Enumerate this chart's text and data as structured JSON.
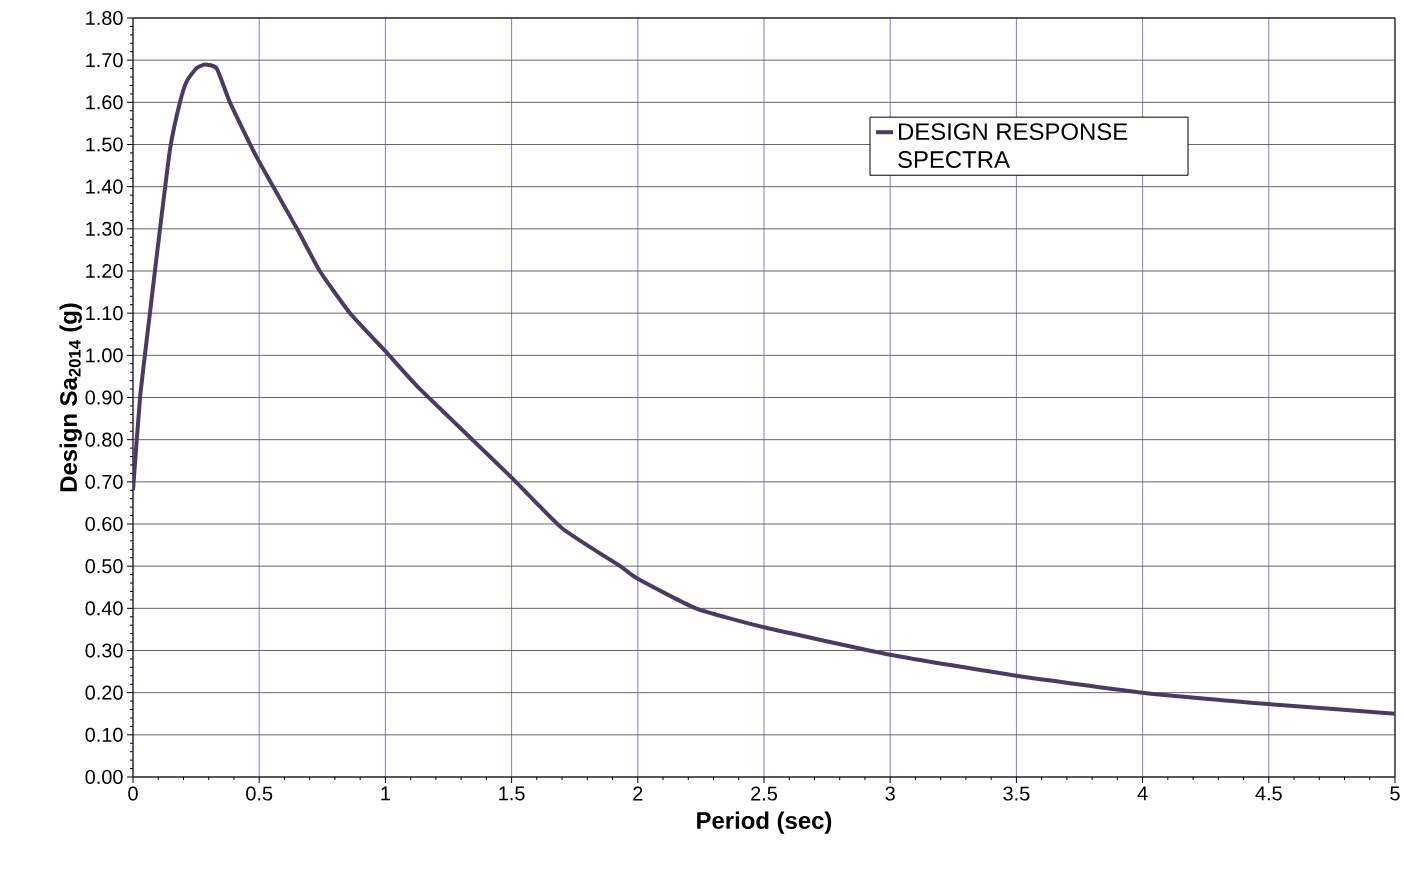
{
  "chart_data": {
    "type": "line",
    "xlabel": "Period (sec)",
    "ylabel": "Design Sa$_{2014}$ (g)",
    "x": [
      0,
      0.028,
      0.067,
      0.107,
      0.147,
      0.186,
      0.213,
      0.25,
      0.285,
      0.332,
      0.384,
      0.49,
      0.65,
      0.74,
      0.86,
      1.0,
      1.137,
      1.5,
      1.7,
      1.93,
      2.0,
      2.23,
      2.5,
      3.0,
      3.5,
      4.0,
      4.5,
      5.0
    ],
    "series": [
      {
        "name": "DESIGN RESPONSE SPECTRA",
        "color": "#4b3b63",
        "values": [
          0.68,
          0.9,
          1.1,
          1.3,
          1.49,
          1.6,
          1.65,
          1.68,
          1.69,
          1.68,
          1.6,
          1.47,
          1.3,
          1.2,
          1.1,
          1.01,
          0.92,
          0.71,
          0.59,
          0.5,
          0.47,
          0.4,
          0.355,
          0.29,
          0.24,
          0.2,
          0.173,
          0.15
        ]
      }
    ],
    "xlim": [
      0,
      5
    ],
    "ylim": [
      0,
      1.8
    ],
    "xticks": [
      0,
      0.5,
      1,
      1.5,
      2,
      2.5,
      3,
      3.5,
      4,
      4.5,
      5
    ],
    "yticks": [
      {
        "value": 0,
        "label": "0.00"
      },
      {
        "value": 0.1,
        "label": "0.10"
      },
      {
        "value": 0.2,
        "label": "0.20"
      },
      {
        "value": 0.3,
        "label": "0.30"
      },
      {
        "value": 0.4,
        "label": "0.40"
      },
      {
        "value": 0.5,
        "label": "0.50"
      },
      {
        "value": 0.6,
        "label": "0.60"
      },
      {
        "value": 0.7,
        "label": "0.70"
      },
      {
        "value": 0.8,
        "label": "0.80"
      },
      {
        "value": 0.9,
        "label": "0.90"
      },
      {
        "value": 1,
        "label": "1.00"
      },
      {
        "value": 1.1,
        "label": "1.10"
      },
      {
        "value": 1.2,
        "label": "1.20"
      },
      {
        "value": 1.3,
        "label": "1.30"
      },
      {
        "value": 1.4,
        "label": "1.40"
      },
      {
        "value": 1.5,
        "label": "1.50"
      },
      {
        "value": 1.6,
        "label": "1.60"
      },
      {
        "value": 1.7,
        "label": "1.70"
      },
      {
        "value": 1.8,
        "label": "1.80"
      }
    ],
    "grid": true,
    "legend": "top right",
    "marker": "none",
    "line_style": "solid"
  }
}
